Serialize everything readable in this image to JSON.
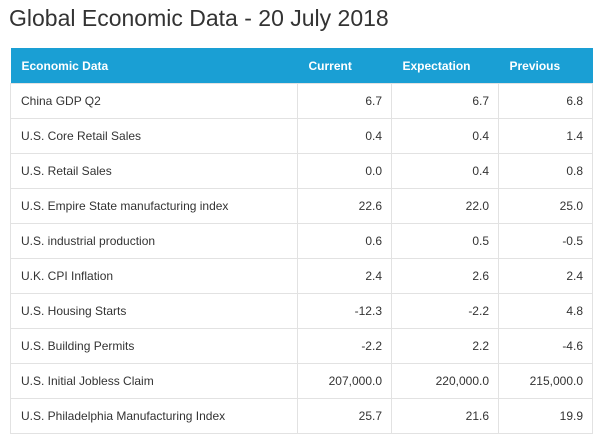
{
  "page": {
    "title": "Global Economic Data - 20 July 2018"
  },
  "table": {
    "headers": [
      "Economic Data",
      "Current",
      "Expectation",
      "Previous"
    ],
    "rows": [
      {
        "name": "China GDP Q2",
        "current": "6.7",
        "expectation": "6.7",
        "previous": "6.8"
      },
      {
        "name": "U.S. Core Retail Sales",
        "current": "0.4",
        "expectation": "0.4",
        "previous": "1.4"
      },
      {
        "name": "U.S. Retail Sales",
        "current": "0.0",
        "expectation": "0.4",
        "previous": "0.8"
      },
      {
        "name": "U.S. Empire State manufacturing index",
        "current": "22.6",
        "expectation": "22.0",
        "previous": "25.0"
      },
      {
        "name": "U.S. industrial production",
        "current": "0.6",
        "expectation": "0.5",
        "previous": "-0.5"
      },
      {
        "name": "U.K. CPI Inflation",
        "current": "2.4",
        "expectation": "2.6",
        "previous": "2.4"
      },
      {
        "name": "U.S. Housing Starts",
        "current": "-12.3",
        "expectation": "-2.2",
        "previous": "4.8"
      },
      {
        "name": "U.S. Building Permits",
        "current": "-2.2",
        "expectation": "2.2",
        "previous": "-4.6"
      },
      {
        "name": "U.S. Initial Jobless Claim",
        "current": "207,000.0",
        "expectation": "220,000.0",
        "previous": "215,000.0"
      },
      {
        "name": "U.S. Philadelphia Manufacturing Index",
        "current": "25.7",
        "expectation": "21.6",
        "previous": "19.9"
      }
    ]
  }
}
